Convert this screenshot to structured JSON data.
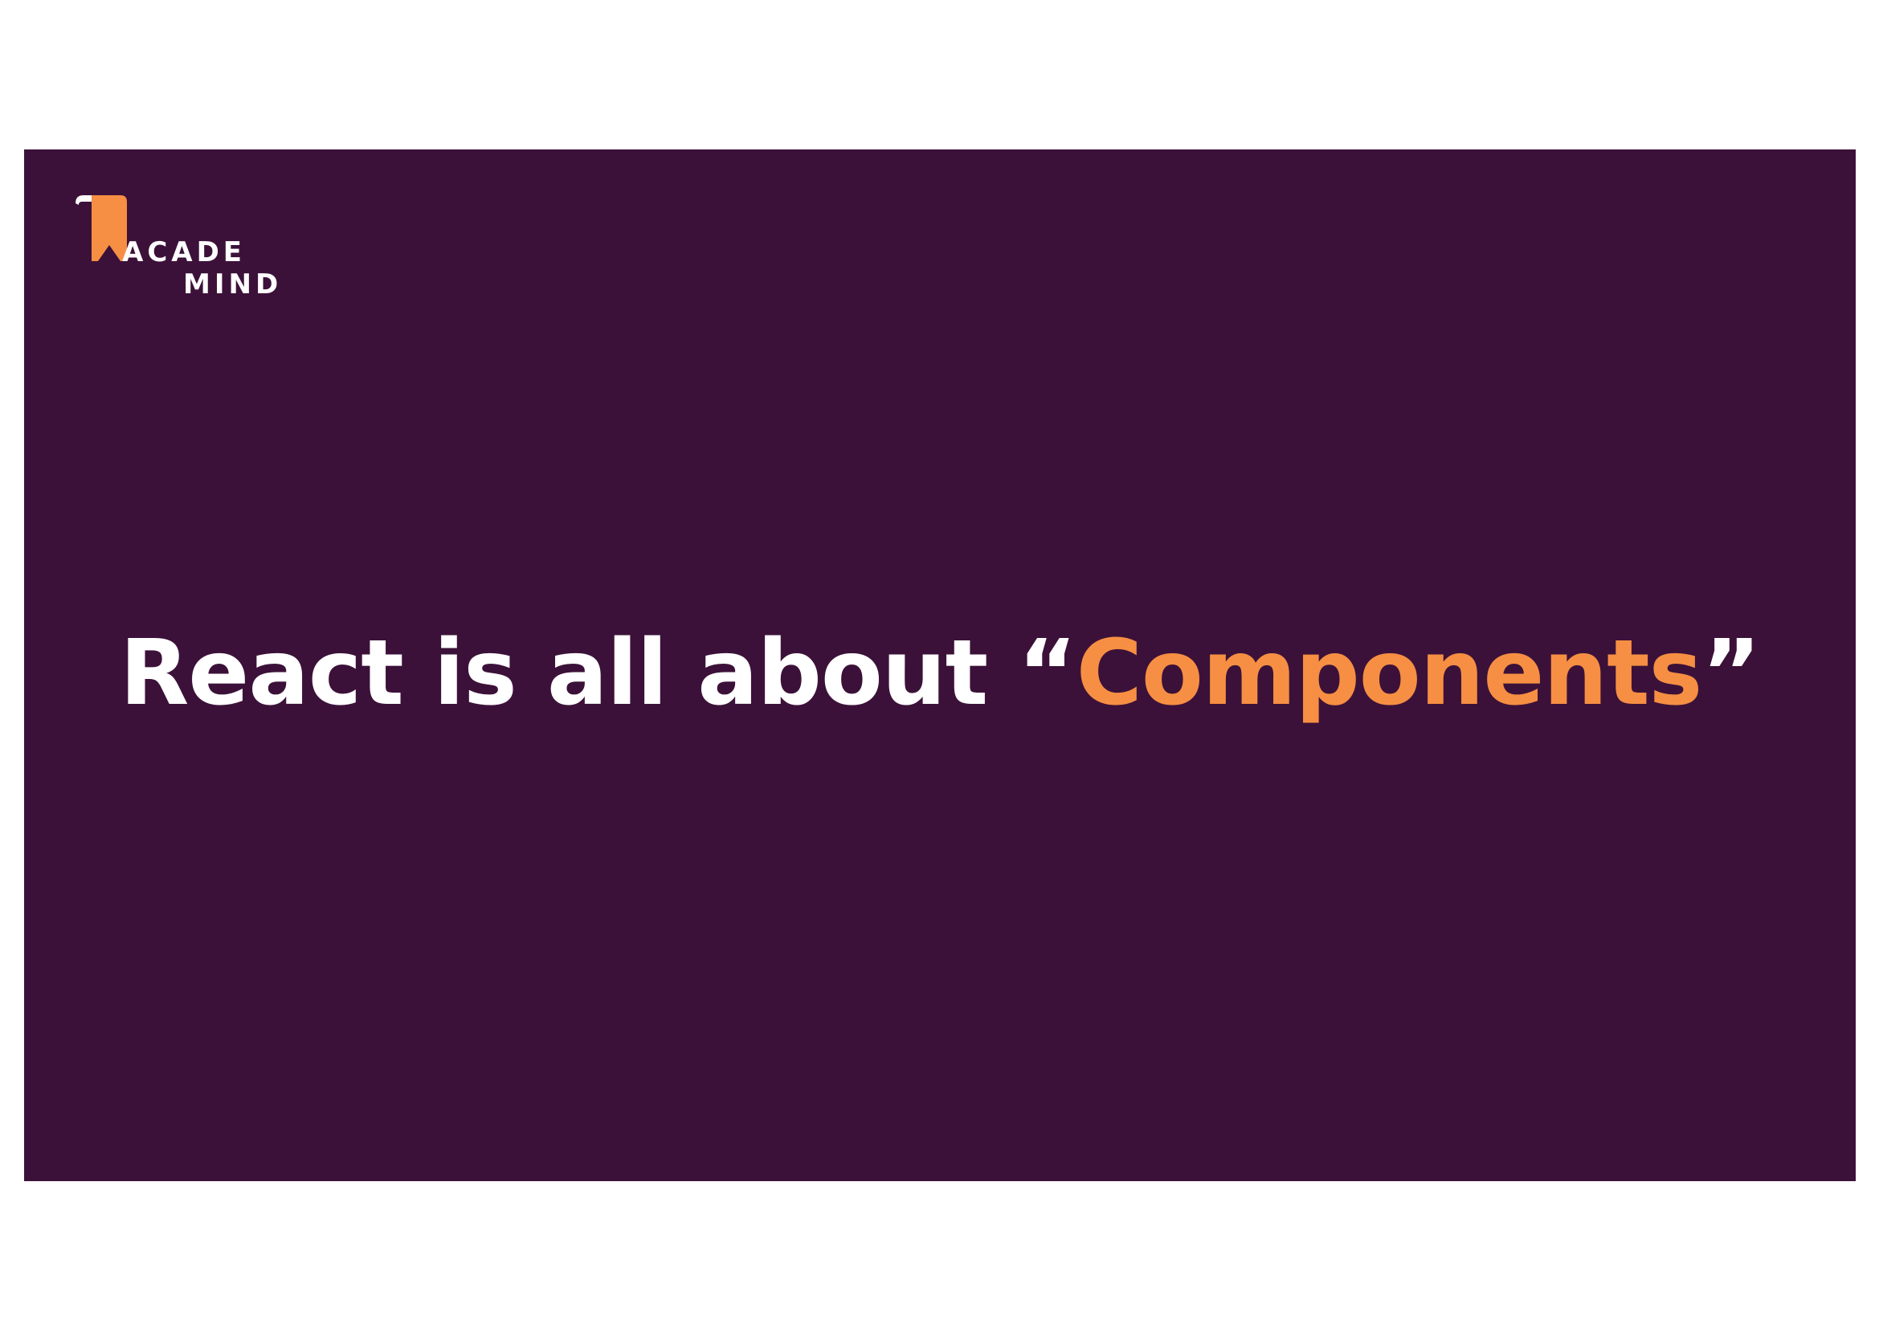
{
  "slide": {
    "background_color": "#3c1139",
    "accent_color": "#f68f43",
    "text_color": "#ffffff"
  },
  "logo": {
    "icon": "bookmark-logo-icon",
    "line1": "ACADE",
    "line2": "MIND"
  },
  "headline": {
    "prefix": "React is all about ",
    "open_quote": "“",
    "highlight": "Components",
    "close_quote": "”"
  }
}
